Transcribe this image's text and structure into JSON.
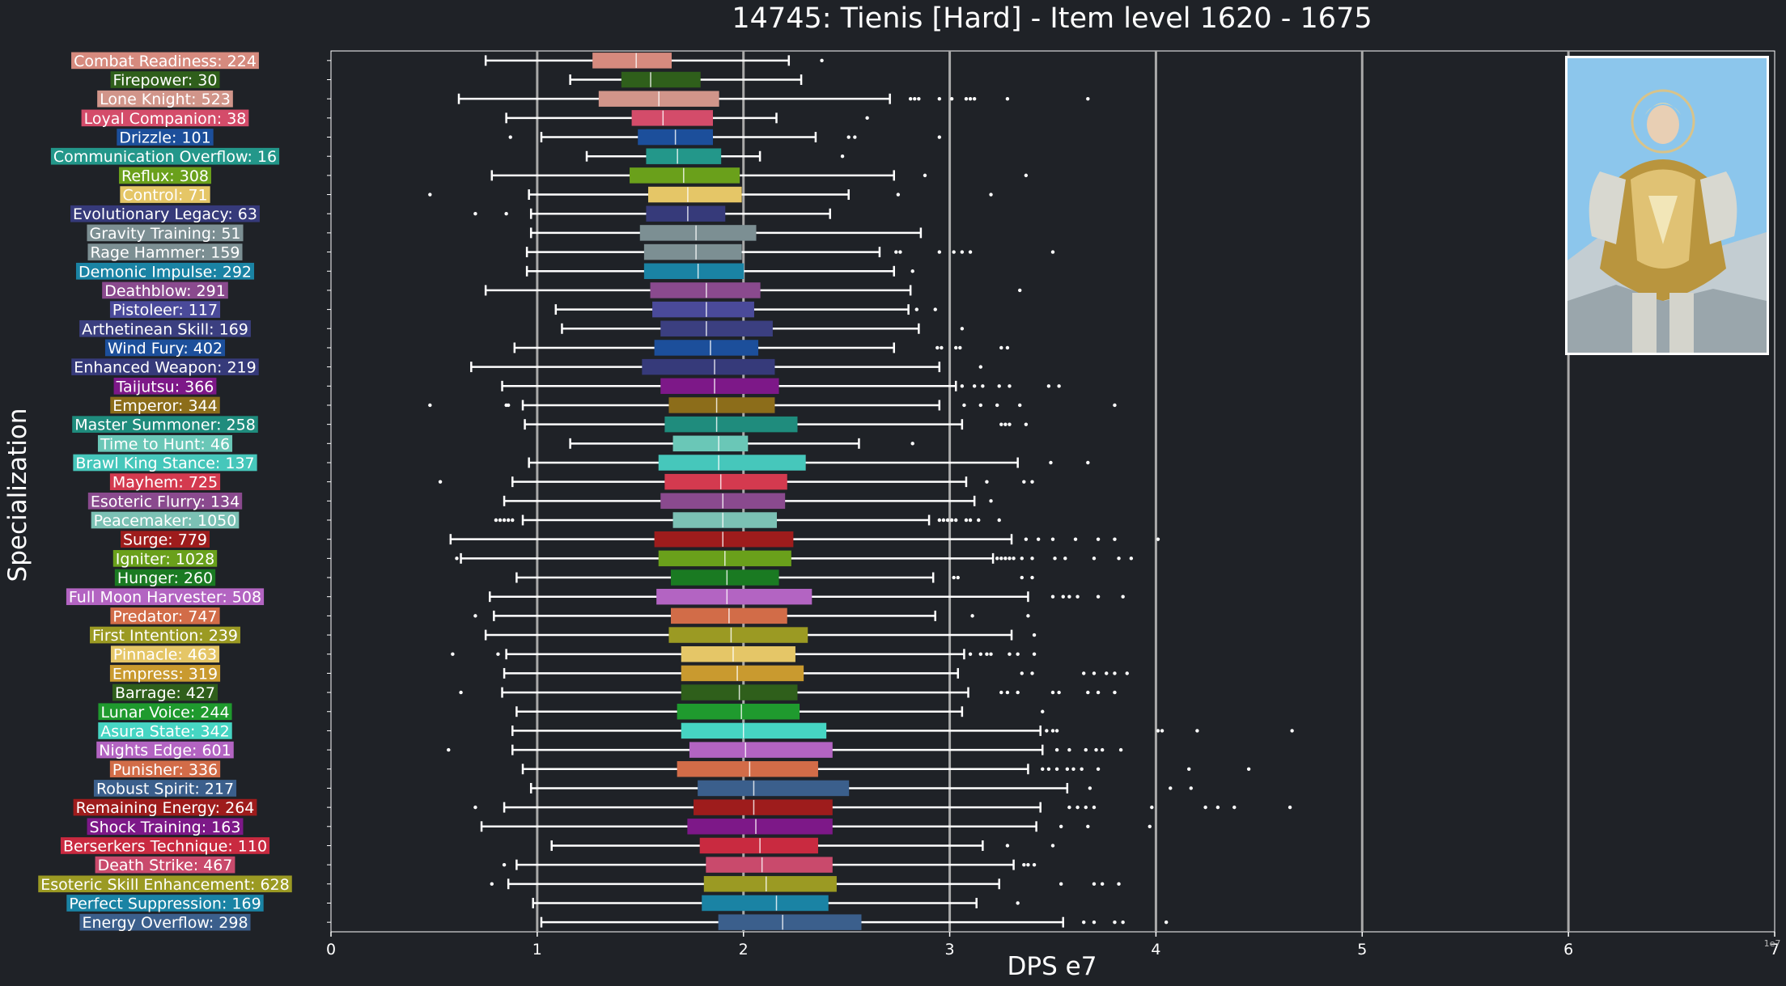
{
  "chart_data": {
    "type": "box",
    "title": "14745: Tienis [Hard] - Item level 1620 - 1675",
    "xlabel": "DPS e7",
    "ylabel": "Specialization",
    "x_multiplier_label": "1e7",
    "xlim": [
      0,
      7
    ],
    "x_ticks": [
      "0",
      "1",
      "2",
      "3",
      "4",
      "5",
      "6",
      "7"
    ],
    "grid": "vertical",
    "categories": [
      {
        "label": "Combat Readiness: 224",
        "color": "#d68a7e",
        "wlo": 0.75,
        "q1": 1.27,
        "med": 1.48,
        "q3": 1.65,
        "whi": 2.22,
        "outliers": [
          2.38
        ]
      },
      {
        "label": "Firepower: 30",
        "color": "#2f5f1b",
        "wlo": 1.16,
        "q1": 1.41,
        "med": 1.55,
        "q3": 1.79,
        "whi": 2.28,
        "outliers": []
      },
      {
        "label": "Lone Knight: 523",
        "color": "#d1958a",
        "wlo": 0.62,
        "q1": 1.3,
        "med": 1.59,
        "q3": 1.88,
        "whi": 2.71,
        "outliers": [
          2.81,
          2.83,
          2.85,
          2.95,
          3.01,
          3.08,
          3.1,
          3.12,
          3.28,
          3.67
        ]
      },
      {
        "label": "Loyal Companion: 38",
        "color": "#d44c6a",
        "wlo": 0.85,
        "q1": 1.46,
        "med": 1.61,
        "q3": 1.85,
        "whi": 2.16,
        "outliers": [
          2.6
        ]
      },
      {
        "label": "Drizzle: 101",
        "color": "#1c4f9b",
        "wlo": 1.02,
        "q1": 1.49,
        "med": 1.67,
        "q3": 1.85,
        "whi": 2.35,
        "outliers": [
          0.87,
          2.51,
          2.54,
          2.95
        ]
      },
      {
        "label": "Communication Overflow: 16",
        "color": "#23978a",
        "wlo": 1.24,
        "q1": 1.53,
        "med": 1.68,
        "q3": 1.89,
        "whi": 2.08,
        "outliers": [
          2.48
        ]
      },
      {
        "label": "Reflux: 308",
        "color": "#6aa01b",
        "wlo": 0.78,
        "q1": 1.45,
        "med": 1.71,
        "q3": 1.98,
        "whi": 2.73,
        "outliers": [
          2.88,
          3.37
        ]
      },
      {
        "label": "Control: 71",
        "color": "#e5c667",
        "wlo": 0.96,
        "q1": 1.54,
        "med": 1.73,
        "q3": 1.99,
        "whi": 2.51,
        "outliers": [
          0.48,
          2.75,
          3.2
        ]
      },
      {
        "label": "Evolutionary Legacy: 63",
        "color": "#363a7a",
        "wlo": 0.97,
        "q1": 1.53,
        "med": 1.73,
        "q3": 1.91,
        "whi": 2.42,
        "outliers": [
          0.7,
          0.85
        ]
      },
      {
        "label": "Gravity Training: 51",
        "color": "#7c8f93",
        "wlo": 0.97,
        "q1": 1.5,
        "med": 1.77,
        "q3": 2.06,
        "whi": 2.86,
        "outliers": []
      },
      {
        "label": "Rage Hammer: 159",
        "color": "#7c8f93",
        "wlo": 0.95,
        "q1": 1.52,
        "med": 1.77,
        "q3": 1.99,
        "whi": 2.66,
        "outliers": [
          2.74,
          2.76,
          2.95,
          3.02,
          3.06,
          3.1,
          3.5
        ]
      },
      {
        "label": "Demonic Impulse: 292",
        "color": "#1a83a4",
        "wlo": 0.95,
        "q1": 1.52,
        "med": 1.78,
        "q3": 2.0,
        "whi": 2.73,
        "outliers": [
          2.82
        ]
      },
      {
        "label": "Deathblow: 291",
        "color": "#8a4a8e",
        "wlo": 0.75,
        "q1": 1.55,
        "med": 1.82,
        "q3": 2.08,
        "whi": 2.81,
        "outliers": [
          3.34
        ]
      },
      {
        "label": "Pistoleer: 117",
        "color": "#4a4a9a",
        "wlo": 1.09,
        "q1": 1.56,
        "med": 1.82,
        "q3": 2.05,
        "whi": 2.8,
        "outliers": [
          2.84,
          2.93
        ]
      },
      {
        "label": "Arthetinean Skill: 169",
        "color": "#3b3f80",
        "wlo": 1.12,
        "q1": 1.6,
        "med": 1.82,
        "q3": 2.14,
        "whi": 2.85,
        "outliers": [
          3.06
        ]
      },
      {
        "label": "Wind Fury: 402",
        "color": "#1c4f9b",
        "wlo": 0.89,
        "q1": 1.57,
        "med": 1.84,
        "q3": 2.07,
        "whi": 2.73,
        "outliers": [
          2.94,
          2.96,
          3.03,
          3.05,
          3.25,
          3.28
        ]
      },
      {
        "label": "Enhanced Weapon: 219",
        "color": "#363a7a",
        "wlo": 0.68,
        "q1": 1.51,
        "med": 1.86,
        "q3": 2.15,
        "whi": 2.95,
        "outliers": [
          3.15
        ]
      },
      {
        "label": "Taijutsu: 366",
        "color": "#7d1888",
        "wlo": 0.83,
        "q1": 1.6,
        "med": 1.86,
        "q3": 2.17,
        "whi": 3.03,
        "outliers": [
          3.06,
          3.12,
          3.16,
          3.24,
          3.29,
          3.48,
          3.53
        ]
      },
      {
        "label": "Emperor: 344",
        "color": "#8c6d1a",
        "wlo": 0.93,
        "q1": 1.64,
        "med": 1.87,
        "q3": 2.15,
        "whi": 2.95,
        "outliers": [
          0.48,
          0.85,
          0.86,
          3.07,
          3.15,
          3.23,
          3.34,
          3.8
        ]
      },
      {
        "label": "Master Summoner: 258",
        "color": "#1f8c7d",
        "wlo": 0.94,
        "q1": 1.62,
        "med": 1.87,
        "q3": 2.26,
        "whi": 3.06,
        "outliers": [
          3.25,
          3.27,
          3.29,
          3.37
        ]
      },
      {
        "label": "Time to Hunt: 46",
        "color": "#6ac7b7",
        "wlo": 1.16,
        "q1": 1.66,
        "med": 1.88,
        "q3": 2.02,
        "whi": 2.56,
        "outliers": [
          2.82
        ]
      },
      {
        "label": "Brawl King Stance: 137",
        "color": "#46c7bb",
        "wlo": 0.96,
        "q1": 1.59,
        "med": 1.88,
        "q3": 2.3,
        "whi": 3.33,
        "outliers": [
          3.49,
          3.67
        ]
      },
      {
        "label": "Mayhem: 725",
        "color": "#d43a4f",
        "wlo": 0.88,
        "q1": 1.62,
        "med": 1.89,
        "q3": 2.21,
        "whi": 3.08,
        "outliers": [
          0.53,
          3.18,
          3.36,
          3.4
        ]
      },
      {
        "label": "Esoteric Flurry: 134",
        "color": "#8a4a8e",
        "wlo": 0.84,
        "q1": 1.6,
        "med": 1.9,
        "q3": 2.2,
        "whi": 3.12,
        "outliers": [
          3.2
        ]
      },
      {
        "label": "Peacemaker: 1050",
        "color": "#7bc1b4",
        "wlo": 0.93,
        "q1": 1.66,
        "med": 1.9,
        "q3": 2.16,
        "whi": 2.9,
        "outliers": [
          0.8,
          0.82,
          0.84,
          0.86,
          0.88,
          2.95,
          2.97,
          2.99,
          3.01,
          3.03,
          3.08,
          3.1,
          3.14,
          3.24
        ]
      },
      {
        "label": "Surge: 779",
        "color": "#9e1c1c",
        "wlo": 0.58,
        "q1": 1.57,
        "med": 1.9,
        "q3": 2.24,
        "whi": 3.3,
        "outliers": [
          3.37,
          3.43,
          3.5,
          3.61,
          3.72,
          3.8,
          4.01
        ]
      },
      {
        "label": "Igniter: 1028",
        "color": "#6aa01b",
        "wlo": 0.63,
        "q1": 1.59,
        "med": 1.91,
        "q3": 2.23,
        "whi": 3.21,
        "outliers": [
          0.61,
          3.23,
          3.25,
          3.27,
          3.29,
          3.31,
          3.35,
          3.4,
          3.51,
          3.56,
          3.7,
          3.82,
          3.88
        ]
      },
      {
        "label": "Hunger: 260",
        "color": "#1a7a22",
        "wlo": 0.9,
        "q1": 1.65,
        "med": 1.92,
        "q3": 2.17,
        "whi": 2.92,
        "outliers": [
          3.02,
          3.04,
          3.35,
          3.4
        ]
      },
      {
        "label": "Full Moon Harvester: 508",
        "color": "#b364c2",
        "wlo": 0.77,
        "q1": 1.58,
        "med": 1.92,
        "q3": 2.33,
        "whi": 3.38,
        "outliers": [
          3.5,
          3.55,
          3.58,
          3.62,
          3.72,
          3.84
        ]
      },
      {
        "label": "Predator: 747",
        "color": "#d26c48",
        "wlo": 0.79,
        "q1": 1.65,
        "med": 1.93,
        "q3": 2.21,
        "whi": 2.93,
        "outliers": [
          0.7,
          3.11,
          3.38
        ]
      },
      {
        "label": "First Intention: 239",
        "color": "#9b9a23",
        "wlo": 0.75,
        "q1": 1.64,
        "med": 1.94,
        "q3": 2.31,
        "whi": 3.3,
        "outliers": [
          3.41
        ]
      },
      {
        "label": "Pinnacle: 463",
        "color": "#e5c667",
        "wlo": 0.85,
        "q1": 1.7,
        "med": 1.95,
        "q3": 2.25,
        "whi": 3.07,
        "outliers": [
          0.59,
          0.81,
          3.1,
          3.15,
          3.18,
          3.2,
          3.29,
          3.33,
          3.41
        ]
      },
      {
        "label": "Empress: 319",
        "color": "#c99a2f",
        "wlo": 0.84,
        "q1": 1.7,
        "med": 1.97,
        "q3": 2.29,
        "whi": 3.04,
        "outliers": [
          3.35,
          3.4,
          3.65,
          3.7,
          3.76,
          3.8,
          3.86
        ]
      },
      {
        "label": "Barrage: 427",
        "color": "#2f5f1b",
        "wlo": 0.83,
        "q1": 1.7,
        "med": 1.98,
        "q3": 2.26,
        "whi": 3.09,
        "outliers": [
          0.63,
          3.25,
          3.28,
          3.33,
          3.5,
          3.53,
          3.67,
          3.72,
          3.8
        ]
      },
      {
        "label": "Lunar Voice: 244",
        "color": "#1f9a2e",
        "wlo": 0.9,
        "q1": 1.68,
        "med": 1.99,
        "q3": 2.27,
        "whi": 3.06,
        "outliers": [
          3.45
        ]
      },
      {
        "label": "Asura State: 342",
        "color": "#46d5c3",
        "wlo": 0.88,
        "q1": 1.7,
        "med": 2.0,
        "q3": 2.4,
        "whi": 3.44,
        "outliers": [
          3.47,
          3.5,
          3.52,
          4.01,
          4.03,
          4.2,
          4.66
        ]
      },
      {
        "label": "Nights Edge: 601",
        "color": "#b364c2",
        "wlo": 0.88,
        "q1": 1.74,
        "med": 2.01,
        "q3": 2.43,
        "whi": 3.45,
        "outliers": [
          0.57,
          3.52,
          3.58,
          3.66,
          3.71,
          3.74,
          3.83
        ]
      },
      {
        "label": "Punisher: 336",
        "color": "#d26c48",
        "wlo": 0.93,
        "q1": 1.68,
        "med": 2.03,
        "q3": 2.36,
        "whi": 3.38,
        "outliers": [
          3.45,
          3.48,
          3.52,
          3.57,
          3.6,
          3.64,
          3.72,
          4.16,
          4.45
        ]
      },
      {
        "label": "Robust Spirit: 217",
        "color": "#3b5f8c",
        "wlo": 0.97,
        "q1": 1.78,
        "med": 2.05,
        "q3": 2.51,
        "whi": 3.57,
        "outliers": [
          3.68,
          4.07,
          4.17
        ]
      },
      {
        "label": "Remaining Energy: 264",
        "color": "#9e1c1c",
        "wlo": 0.84,
        "q1": 1.76,
        "med": 2.05,
        "q3": 2.43,
        "whi": 3.44,
        "outliers": [
          0.7,
          3.58,
          3.62,
          3.66,
          3.7,
          3.98,
          4.24,
          4.3,
          4.38,
          4.65
        ]
      },
      {
        "label": "Shock Training: 163",
        "color": "#7d1888",
        "wlo": 0.73,
        "q1": 1.73,
        "med": 2.06,
        "q3": 2.43,
        "whi": 3.42,
        "outliers": [
          3.54,
          3.67,
          3.97
        ]
      },
      {
        "label": "Berserkers Technique: 110",
        "color": "#c92a40",
        "wlo": 1.07,
        "q1": 1.79,
        "med": 2.08,
        "q3": 2.36,
        "whi": 3.16,
        "outliers": [
          3.28,
          3.5
        ]
      },
      {
        "label": "Death Strike: 467",
        "color": "#c94a6c",
        "wlo": 0.9,
        "q1": 1.82,
        "med": 2.09,
        "q3": 2.43,
        "whi": 3.31,
        "outliers": [
          0.84,
          3.36,
          3.38,
          3.41
        ]
      },
      {
        "label": "Esoteric Skill Enhancement: 628",
        "color": "#9b9a23",
        "wlo": 0.86,
        "q1": 1.81,
        "med": 2.11,
        "q3": 2.45,
        "whi": 3.24,
        "outliers": [
          0.78,
          3.54,
          3.7,
          3.74,
          3.82
        ]
      },
      {
        "label": "Perfect Suppression: 169",
        "color": "#1a83a4",
        "wlo": 0.98,
        "q1": 1.8,
        "med": 2.16,
        "q3": 2.41,
        "whi": 3.13,
        "outliers": [
          3.33
        ]
      },
      {
        "label": "Energy Overflow: 298",
        "color": "#3b5f8c",
        "wlo": 1.02,
        "q1": 1.88,
        "med": 2.19,
        "q3": 2.57,
        "whi": 3.55,
        "outliers": [
          3.65,
          3.7,
          3.8,
          3.84,
          4.05
        ]
      }
    ]
  }
}
